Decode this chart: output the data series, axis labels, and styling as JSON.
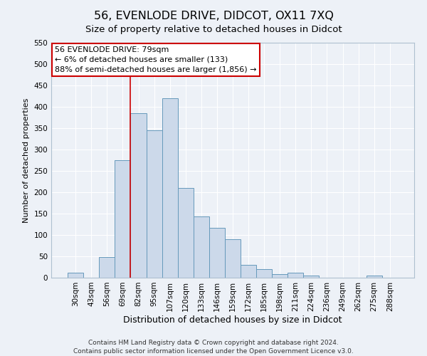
{
  "title": "56, EVENLODE DRIVE, DIDCOT, OX11 7XQ",
  "subtitle": "Size of property relative to detached houses in Didcot",
  "xlabel": "Distribution of detached houses by size in Didcot",
  "ylabel": "Number of detached properties",
  "bar_color": "#ccd9ea",
  "bar_edge_color": "#6699bb",
  "background_color": "#edf1f7",
  "grid_color": "#ffffff",
  "annotation_box_color": "#cc0000",
  "vline_color": "#cc0000",
  "categories": [
    "30sqm",
    "43sqm",
    "56sqm",
    "69sqm",
    "82sqm",
    "95sqm",
    "107sqm",
    "120sqm",
    "133sqm",
    "146sqm",
    "159sqm",
    "172sqm",
    "185sqm",
    "198sqm",
    "211sqm",
    "224sqm",
    "236sqm",
    "249sqm",
    "262sqm",
    "275sqm",
    "288sqm"
  ],
  "values": [
    12,
    0,
    48,
    275,
    385,
    345,
    420,
    210,
    143,
    116,
    90,
    30,
    20,
    9,
    12,
    5,
    0,
    0,
    0,
    5,
    0
  ],
  "ylim": [
    0,
    550
  ],
  "yticks": [
    0,
    50,
    100,
    150,
    200,
    250,
    300,
    350,
    400,
    450,
    500,
    550
  ],
  "vline_position": 4.0,
  "annotation_title": "56 EVENLODE DRIVE: 79sqm",
  "annotation_line1": "← 6% of detached houses are smaller (133)",
  "annotation_line2": "88% of semi-detached houses are larger (1,856) →",
  "footer_line1": "Contains HM Land Registry data © Crown copyright and database right 2024.",
  "footer_line2": "Contains public sector information licensed under the Open Government Licence v3.0.",
  "title_fontsize": 11.5,
  "subtitle_fontsize": 9.5,
  "xlabel_fontsize": 9,
  "ylabel_fontsize": 8,
  "tick_fontsize": 7.5,
  "annotation_fontsize": 8,
  "footer_fontsize": 6.5
}
